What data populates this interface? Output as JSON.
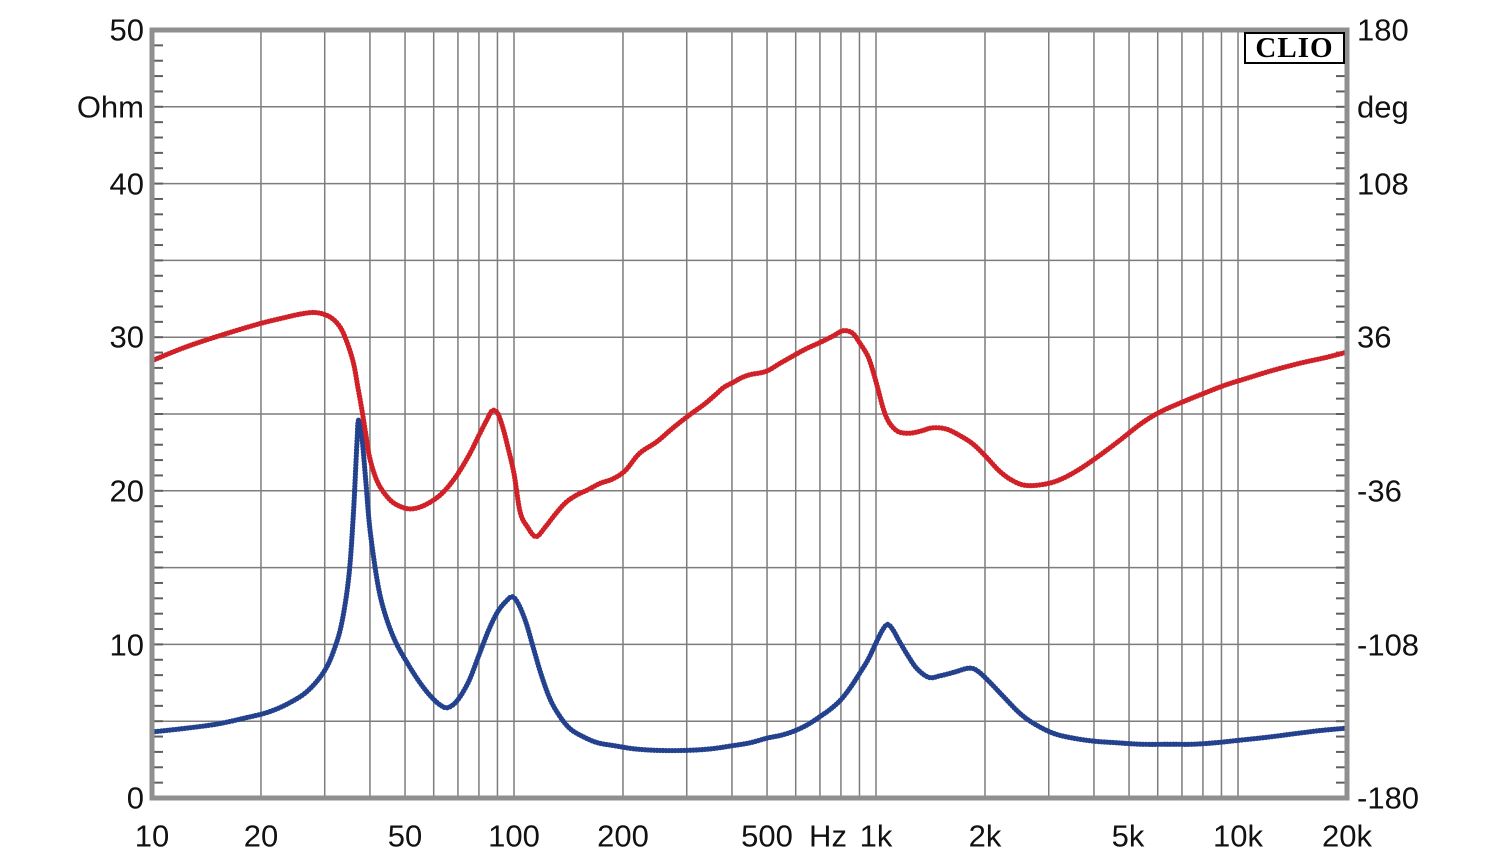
{
  "style": {
    "background": "#ffffff",
    "frame_color": "#8f8f8f",
    "grid_color": "#7d7d7d",
    "tick_color": "#5f5f5f",
    "text_color": "#111111"
  },
  "chart_data": {
    "type": "line",
    "title": "",
    "brand": "CLIO",
    "legend_position": "none",
    "grid": true,
    "x_axis": {
      "scale": "log",
      "unit": "Hz",
      "min": 10,
      "max": 20000,
      "tick_labels": [
        "10",
        "20",
        "50",
        "100",
        "200",
        "500",
        "1k",
        "2k",
        "5k",
        "10k",
        "20k"
      ],
      "tick_values": [
        10,
        20,
        50,
        100,
        200,
        500,
        1000,
        2000,
        5000,
        10000,
        20000
      ]
    },
    "y_axis_left": {
      "label": "Ohm",
      "min": 0,
      "max": 50,
      "tick_labels": [
        "50",
        "40",
        "30",
        "20",
        "10",
        "0"
      ],
      "tick_values": [
        50,
        40,
        30,
        20,
        10,
        0
      ],
      "grid_step": 5,
      "minor_tick_step": 1
    },
    "y_axis_right": {
      "label": "deg",
      "min": -180,
      "max": 180,
      "tick_labels": [
        "180",
        "108",
        "36",
        "-36",
        "-108",
        "-180"
      ],
      "tick_values": [
        180,
        108,
        36,
        -36,
        -108,
        -180
      ]
    },
    "series": [
      {
        "name": "impedance-magnitude",
        "axis": "left",
        "unit": "Ohm",
        "color": "#24418e",
        "points": [
          [
            10,
            4.3
          ],
          [
            12,
            4.5
          ],
          [
            15,
            4.8
          ],
          [
            18,
            5.2
          ],
          [
            21,
            5.6
          ],
          [
            24,
            6.2
          ],
          [
            27,
            7.0
          ],
          [
            30,
            8.3
          ],
          [
            32,
            9.8
          ],
          [
            33.5,
            11.5
          ],
          [
            35,
            14.5
          ],
          [
            36,
            18.5
          ],
          [
            36.8,
            23.0
          ],
          [
            37.2,
            24.6
          ],
          [
            38,
            23.5
          ],
          [
            39,
            20.5
          ],
          [
            40,
            17.5
          ],
          [
            42,
            14.0
          ],
          [
            44,
            12.0
          ],
          [
            47,
            10.2
          ],
          [
            51,
            8.7
          ],
          [
            55,
            7.5
          ],
          [
            59,
            6.6
          ],
          [
            63,
            6.0
          ],
          [
            66,
            5.9
          ],
          [
            70,
            6.4
          ],
          [
            75,
            7.6
          ],
          [
            80,
            9.3
          ],
          [
            85,
            10.9
          ],
          [
            90,
            12.1
          ],
          [
            95,
            12.8
          ],
          [
            99,
            13.1
          ],
          [
            103,
            12.6
          ],
          [
            108,
            11.4
          ],
          [
            113,
            9.8
          ],
          [
            119,
            8.0
          ],
          [
            126,
            6.4
          ],
          [
            134,
            5.3
          ],
          [
            143,
            4.5
          ],
          [
            155,
            4.0
          ],
          [
            170,
            3.6
          ],
          [
            190,
            3.4
          ],
          [
            215,
            3.2
          ],
          [
            250,
            3.1
          ],
          [
            300,
            3.1
          ],
          [
            350,
            3.2
          ],
          [
            400,
            3.4
          ],
          [
            450,
            3.6
          ],
          [
            500,
            3.9
          ],
          [
            550,
            4.1
          ],
          [
            600,
            4.4
          ],
          [
            650,
            4.8
          ],
          [
            700,
            5.3
          ],
          [
            750,
            5.8
          ],
          [
            800,
            6.4
          ],
          [
            850,
            7.2
          ],
          [
            900,
            8.1
          ],
          [
            950,
            9.0
          ],
          [
            1000,
            10.1
          ],
          [
            1040,
            10.9
          ],
          [
            1075,
            11.3
          ],
          [
            1110,
            11.0
          ],
          [
            1160,
            10.2
          ],
          [
            1230,
            9.2
          ],
          [
            1300,
            8.4
          ],
          [
            1400,
            7.85
          ],
          [
            1500,
            7.95
          ],
          [
            1650,
            8.2
          ],
          [
            1800,
            8.45
          ],
          [
            1900,
            8.3
          ],
          [
            2050,
            7.6
          ],
          [
            2250,
            6.6
          ],
          [
            2500,
            5.5
          ],
          [
            2750,
            4.8
          ],
          [
            3100,
            4.2
          ],
          [
            3500,
            3.9
          ],
          [
            4000,
            3.7
          ],
          [
            4600,
            3.6
          ],
          [
            5400,
            3.5
          ],
          [
            6500,
            3.5
          ],
          [
            7500,
            3.5
          ],
          [
            8700,
            3.6
          ],
          [
            10000,
            3.75
          ],
          [
            12000,
            3.95
          ],
          [
            14500,
            4.2
          ],
          [
            17000,
            4.4
          ],
          [
            20000,
            4.55
          ]
        ]
      },
      {
        "name": "impedance-phase",
        "axis": "right",
        "unit": "deg",
        "color": "#d02128",
        "points": [
          [
            10,
            25
          ],
          [
            12,
            30.5
          ],
          [
            14,
            34.5
          ],
          [
            17,
            39
          ],
          [
            20,
            42.5
          ],
          [
            23,
            45
          ],
          [
            26,
            47
          ],
          [
            28.5,
            47.5
          ],
          [
            31,
            45.5
          ],
          [
            33,
            41
          ],
          [
            34.5,
            34
          ],
          [
            36,
            24
          ],
          [
            37,
            13
          ],
          [
            38,
            2
          ],
          [
            39,
            -10
          ],
          [
            40,
            -21
          ],
          [
            42,
            -32
          ],
          [
            45,
            -39.5
          ],
          [
            48,
            -43
          ],
          [
            52,
            -44.5
          ],
          [
            57,
            -42.5
          ],
          [
            63,
            -37.5
          ],
          [
            69,
            -29.5
          ],
          [
            75,
            -19.5
          ],
          [
            80,
            -10
          ],
          [
            84,
            -3
          ],
          [
            87,
            1.5
          ],
          [
            90,
            0.5
          ],
          [
            93,
            -6
          ],
          [
            96,
            -15
          ],
          [
            100,
            -28
          ],
          [
            104,
            -46
          ],
          [
            109,
            -53
          ],
          [
            115,
            -57.5
          ],
          [
            122,
            -53
          ],
          [
            130,
            -47
          ],
          [
            139,
            -41.5
          ],
          [
            149,
            -38
          ],
          [
            160,
            -35.5
          ],
          [
            173,
            -32.5
          ],
          [
            187,
            -30.5
          ],
          [
            203,
            -26.5
          ],
          [
            222,
            -18.5
          ],
          [
            248,
            -13
          ],
          [
            275,
            -6.5
          ],
          [
            305,
            -0.5
          ],
          [
            335,
            4.5
          ],
          [
            360,
            9
          ],
          [
            380,
            12.5
          ],
          [
            405,
            15
          ],
          [
            425,
            17
          ],
          [
            450,
            18.5
          ],
          [
            480,
            19.3
          ],
          [
            505,
            20.5
          ],
          [
            540,
            23.5
          ],
          [
            580,
            26.5
          ],
          [
            640,
            30.5
          ],
          [
            700,
            33.5
          ],
          [
            760,
            36.5
          ],
          [
            810,
            39
          ],
          [
            860,
            38
          ],
          [
            900,
            33.5
          ],
          [
            950,
            27
          ],
          [
            985,
            19
          ],
          [
            1015,
            11
          ],
          [
            1045,
            3
          ],
          [
            1075,
            -2.5
          ],
          [
            1110,
            -6
          ],
          [
            1160,
            -8.5
          ],
          [
            1240,
            -9
          ],
          [
            1330,
            -8
          ],
          [
            1430,
            -6.5
          ],
          [
            1560,
            -7
          ],
          [
            1700,
            -10
          ],
          [
            1850,
            -14
          ],
          [
            2000,
            -19.5
          ],
          [
            2200,
            -27
          ],
          [
            2400,
            -31.5
          ],
          [
            2600,
            -33.5
          ],
          [
            2900,
            -33
          ],
          [
            3200,
            -31
          ],
          [
            3600,
            -26.5
          ],
          [
            4100,
            -20
          ],
          [
            4700,
            -12.5
          ],
          [
            5400,
            -4.5
          ],
          [
            6100,
            1
          ],
          [
            7000,
            5.5
          ],
          [
            8000,
            9.5
          ],
          [
            9200,
            13.5
          ],
          [
            10700,
            17
          ],
          [
            12500,
            20.5
          ],
          [
            15000,
            24
          ],
          [
            17500,
            26.5
          ],
          [
            20000,
            29
          ]
        ]
      }
    ]
  }
}
